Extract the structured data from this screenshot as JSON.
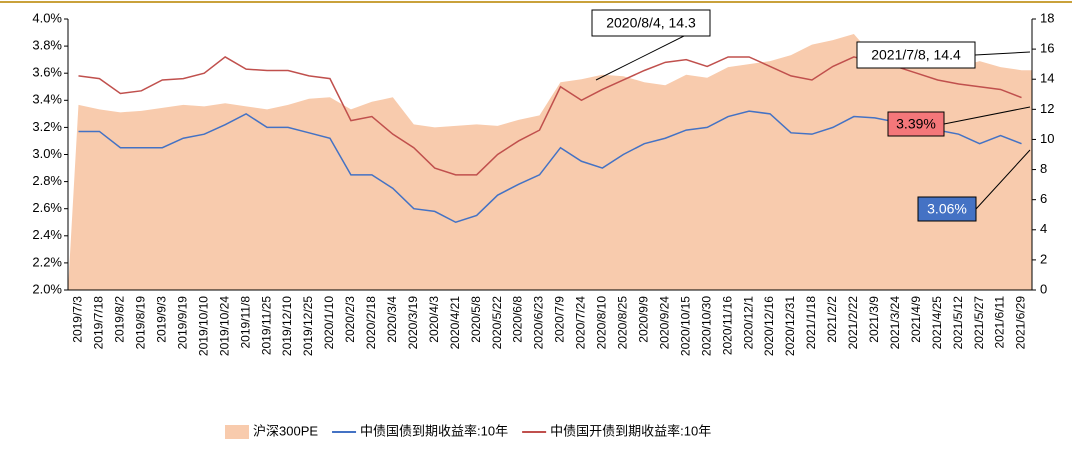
{
  "chart_data": {
    "type": "line",
    "categories": [
      "2019/7/3",
      "2019/7/18",
      "2019/8/2",
      "2019/8/19",
      "2019/9/3",
      "2019/9/19",
      "2019/10/10",
      "2019/10/24",
      "2019/11/8",
      "2019/11/25",
      "2019/12/10",
      "2019/12/25",
      "2020/1/10",
      "2020/2/3",
      "2020/2/18",
      "2020/3/4",
      "2020/3/19",
      "2020/4/3",
      "2020/4/21",
      "2020/5/8",
      "2020/5/22",
      "2020/6/8",
      "2020/6/23",
      "2020/7/9",
      "2020/7/24",
      "2020/8/10",
      "2020/8/25",
      "2020/9/9",
      "2020/9/24",
      "2020/10/15",
      "2020/10/30",
      "2020/11/16",
      "2020/12/1",
      "2020/12/16",
      "2020/12/31",
      "2021/1/18",
      "2021/2/2",
      "2021/2/22",
      "2021/3/9",
      "2021/3/24",
      "2021/4/9",
      "2021/4/25",
      "2021/5/12",
      "2021/5/27",
      "2021/6/11",
      "2021/6/29"
    ],
    "series": [
      {
        "name": "沪深300PE",
        "color": "#f8cbad",
        "axis": "y2",
        "kind": "area",
        "values": [
          12.3,
          12.0,
          11.8,
          11.9,
          12.1,
          12.3,
          12.2,
          12.4,
          12.2,
          12.0,
          12.3,
          12.7,
          12.8,
          12.0,
          12.5,
          12.8,
          11.0,
          10.8,
          10.9,
          11.0,
          10.9,
          11.3,
          11.6,
          13.8,
          14.0,
          14.3,
          14.2,
          13.8,
          13.6,
          14.3,
          14.1,
          14.8,
          15.0,
          15.2,
          15.6,
          16.3,
          16.6,
          17.0,
          15.4,
          15.2,
          15.4,
          15.2,
          14.8,
          15.2,
          14.8,
          14.6
        ]
      },
      {
        "name": "中债国债到期收益率:10年",
        "color": "#4472c4",
        "kind": "line",
        "values": [
          3.17,
          3.17,
          3.05,
          3.05,
          3.05,
          3.12,
          3.15,
          3.22,
          3.3,
          3.2,
          3.2,
          3.16,
          3.12,
          2.85,
          2.85,
          2.75,
          2.6,
          2.58,
          2.5,
          2.55,
          2.7,
          2.78,
          2.85,
          3.05,
          2.95,
          2.9,
          3.0,
          3.08,
          3.12,
          3.18,
          3.2,
          3.28,
          3.32,
          3.3,
          3.16,
          3.15,
          3.2,
          3.28,
          3.27,
          3.24,
          3.25,
          3.18,
          3.15,
          3.08,
          3.14,
          3.08
        ]
      },
      {
        "name": "中债国开债到期收益率:10年",
        "color": "#c0504d",
        "kind": "line",
        "values": [
          3.58,
          3.56,
          3.45,
          3.47,
          3.55,
          3.56,
          3.6,
          3.72,
          3.63,
          3.62,
          3.62,
          3.58,
          3.56,
          3.25,
          3.28,
          3.15,
          3.05,
          2.9,
          2.85,
          2.85,
          3.0,
          3.1,
          3.18,
          3.5,
          3.4,
          3.48,
          3.55,
          3.62,
          3.68,
          3.7,
          3.65,
          3.72,
          3.72,
          3.65,
          3.58,
          3.55,
          3.65,
          3.72,
          3.68,
          3.65,
          3.6,
          3.55,
          3.52,
          3.5,
          3.48,
          3.42
        ]
      }
    ],
    "ylim": [
      2.0,
      4.0
    ],
    "yticks": [
      {
        "value": 2.0,
        "label": "2.0%"
      },
      {
        "value": 2.2,
        "label": "2.2%"
      },
      {
        "value": 2.4,
        "label": "2.4%"
      },
      {
        "value": 2.6,
        "label": "2.6%"
      },
      {
        "value": 2.8,
        "label": "2.8%"
      },
      {
        "value": 3.0,
        "label": "3.0%"
      },
      {
        "value": 3.2,
        "label": "3.2%"
      },
      {
        "value": 3.4,
        "label": "3.4%"
      },
      {
        "value": 3.6,
        "label": "3.6%"
      },
      {
        "value": 3.8,
        "label": "3.8%"
      },
      {
        "value": 4.0,
        "label": "4.0%"
      }
    ],
    "y2lim": [
      0,
      18
    ],
    "y2ticks": [
      0,
      2,
      4,
      6,
      8,
      10,
      12,
      14,
      16,
      18
    ],
    "annotations": [
      {
        "text": "2020/8/4, 14.3"
      },
      {
        "text": "2021/7/8, 14.4"
      },
      {
        "text": "3.39%",
        "color": "#f4777a"
      },
      {
        "text": "3.06%",
        "color": "#4472c4"
      }
    ],
    "legend": "bottom"
  }
}
